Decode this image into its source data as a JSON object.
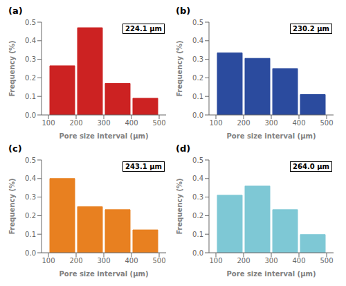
{
  "chart_data": [
    {
      "type": "bar",
      "title": "(a)",
      "annotations": [
        "224.1 μm"
      ],
      "xlabel": "Pore size interval (μm)",
      "ylabel": "Frequency (%)",
      "x": [
        150,
        250,
        350,
        450
      ],
      "values": [
        0.265,
        0.47,
        0.17,
        0.09
      ],
      "color": "#cc2222",
      "xlim": [
        75,
        525
      ],
      "xticks": [
        100,
        200,
        300,
        400,
        500
      ],
      "ylim": [
        0,
        0.5
      ],
      "yticks": [
        {
          "value": 0.0,
          "label": "0.0"
        },
        0.1,
        0.2,
        0.3,
        0.4,
        0.5
      ],
      "grid": false
    },
    {
      "type": "bar",
      "title": "(b)",
      "annotations": [
        "230.2 μm"
      ],
      "xlabel": "Pore size interval (μm)",
      "ylabel": "Frequency (%)",
      "x": [
        150,
        250,
        350,
        450
      ],
      "values": [
        0.335,
        0.305,
        0.25,
        0.11
      ],
      "color": "#2b4b9e",
      "xlim": [
        75,
        525
      ],
      "xticks": [
        100,
        200,
        300,
        400,
        500
      ],
      "ylim": [
        0,
        0.5
      ],
      "yticks": [
        {
          "value": 0.0,
          "label": "0.0"
        },
        0.1,
        0.2,
        0.3,
        0.4,
        0.5
      ],
      "grid": false
    },
    {
      "type": "bar",
      "title": "(c)",
      "annotations": [
        "243.1 μm"
      ],
      "xlabel": "Pore size interval (μm)",
      "ylabel": "Frequency (%)",
      "x": [
        150,
        250,
        350,
        450
      ],
      "values": [
        0.4,
        0.248,
        0.232,
        0.123
      ],
      "color": "#e88020",
      "xlim": [
        75,
        525
      ],
      "xticks": [
        100,
        200,
        300,
        400,
        500
      ],
      "ylim": [
        0,
        0.5
      ],
      "yticks": [
        {
          "value": 0.0,
          "label": "0.0"
        },
        0.1,
        0.2,
        0.3,
        0.4,
        0.5
      ],
      "grid": false
    },
    {
      "type": "bar",
      "title": "(d)",
      "annotations": [
        "264.0 μm"
      ],
      "xlabel": "Pore size interval (μm)",
      "ylabel": "Frequency (%)",
      "x": [
        150,
        250,
        350,
        450
      ],
      "values": [
        0.31,
        0.36,
        0.232,
        0.098
      ],
      "color": "#7ec8d5",
      "xlim": [
        75,
        525
      ],
      "xticks": [
        100,
        200,
        300,
        400,
        500
      ],
      "ylim": [
        0,
        0.5
      ],
      "yticks": [
        {
          "value": 0.0,
          "label": "0.0"
        },
        0.1,
        0.2,
        0.3,
        0.4,
        0.5
      ],
      "grid": false
    }
  ]
}
